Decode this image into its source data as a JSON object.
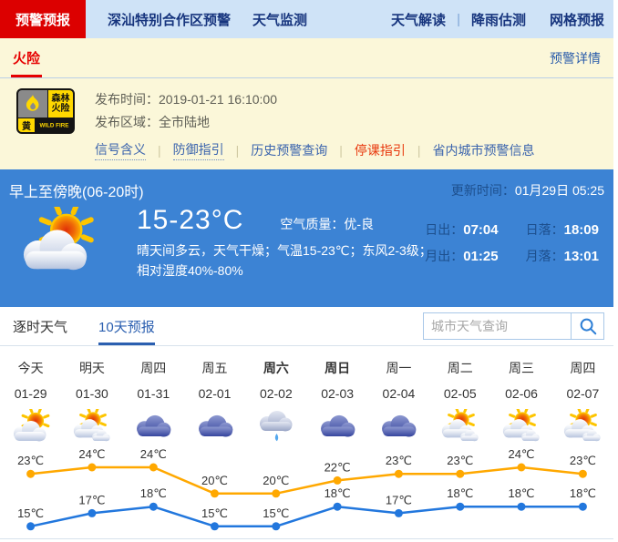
{
  "header": {
    "tabs": [
      {
        "label": "预警预报",
        "active": true
      },
      {
        "label": "深汕特别合作区预警",
        "active": false
      },
      {
        "label": "天气监测",
        "active": false
      }
    ],
    "right_links": [
      {
        "label": "天气解读",
        "sep_after": true
      },
      {
        "label": "降雨估测",
        "sep_after": false
      },
      {
        "label": "网格预报",
        "sep_after": false
      }
    ]
  },
  "alert_bar": {
    "title": "火险",
    "detail_link": "预警详情"
  },
  "warning": {
    "badge": {
      "icon": "wild-fire-icon",
      "title_line1": "森林",
      "title_line2": "火险",
      "level": "黄",
      "level_en": "WILD FIRE"
    },
    "publish_time_label": "发布时间：",
    "publish_time_value": "2019-01-21 16:10:00",
    "publish_area_label": "发布区域：",
    "publish_area_value": "全市陆地",
    "links": [
      {
        "label": "信号含义",
        "underline": "dotted",
        "highlight": false
      },
      {
        "label": "防御指引",
        "underline": "dotted",
        "highlight": false
      },
      {
        "label": "历史预警查询",
        "underline": "none",
        "highlight": false
      },
      {
        "label": "停课指引",
        "underline": "none",
        "highlight": true
      },
      {
        "label": "省内城市预警信息",
        "underline": "none",
        "highlight": false
      }
    ]
  },
  "current": {
    "period_title": "早上至傍晚(06-20时)",
    "update_label": "更新时间：",
    "update_value": "01月29日 05:25",
    "weather_icon": "sun-cloud-icon",
    "temp_range": "15-23°C",
    "air_quality_label": "空气质量：",
    "air_quality_value": "优-良",
    "description_line1": "晴天间多云，天气干燥；气温15-23℃；东风2-3级；",
    "description_line2": "相对湿度40%-80%",
    "sun_moon": [
      {
        "label": "日出：",
        "value": "07:04"
      },
      {
        "label": "日落：",
        "value": "18:09"
      },
      {
        "label": "月出：",
        "value": "01:25"
      },
      {
        "label": "月落：",
        "value": "13:01"
      }
    ]
  },
  "forecast_tabs": [
    {
      "label": "逐时天气",
      "active": false
    },
    {
      "label": "10天预报",
      "active": true
    }
  ],
  "search": {
    "placeholder": "城市天气查询",
    "icon": "search-icon"
  },
  "chart_data": {
    "type": "line",
    "title": "10天预报",
    "categories": [
      "今天",
      "明天",
      "周四",
      "周五",
      "周六",
      "周日",
      "周一",
      "周二",
      "周三",
      "周四"
    ],
    "dates": [
      "01-29",
      "01-30",
      "01-31",
      "02-01",
      "02-02",
      "02-03",
      "02-04",
      "02-05",
      "02-06",
      "02-07"
    ],
    "bold_days": [
      4,
      5
    ],
    "icons": [
      "sun-cloud",
      "sun-clouds",
      "cloud",
      "cloud",
      "rain",
      "cloud",
      "cloud",
      "sun-clouds",
      "sun-clouds",
      "sun-clouds"
    ],
    "series": [
      {
        "name": "high",
        "color": "#ffa800",
        "values": [
          23,
          24,
          24,
          20,
          20,
          22,
          23,
          23,
          24,
          23
        ]
      },
      {
        "name": "low",
        "color": "#2277dd",
        "values": [
          15,
          17,
          18,
          15,
          15,
          18,
          17,
          18,
          18,
          18
        ]
      }
    ],
    "unit": "℃",
    "ylim": [
      14,
      25
    ],
    "grid": false,
    "legend": "none"
  },
  "colors": {
    "nav_bg": "#cfe3f7",
    "nav_active_bg": "#dc0000",
    "nav_text": "#17357e",
    "warning_bg": "#fbf7d9",
    "link_blue": "#3b64ad",
    "highlight_red": "#e8380d",
    "panel_blue": "#3c83d4",
    "panel_label_blue": "#1d4f8d",
    "tab_active_blue": "#2b5fb0",
    "chart_high": "#ffa800",
    "chart_low": "#2277dd"
  }
}
